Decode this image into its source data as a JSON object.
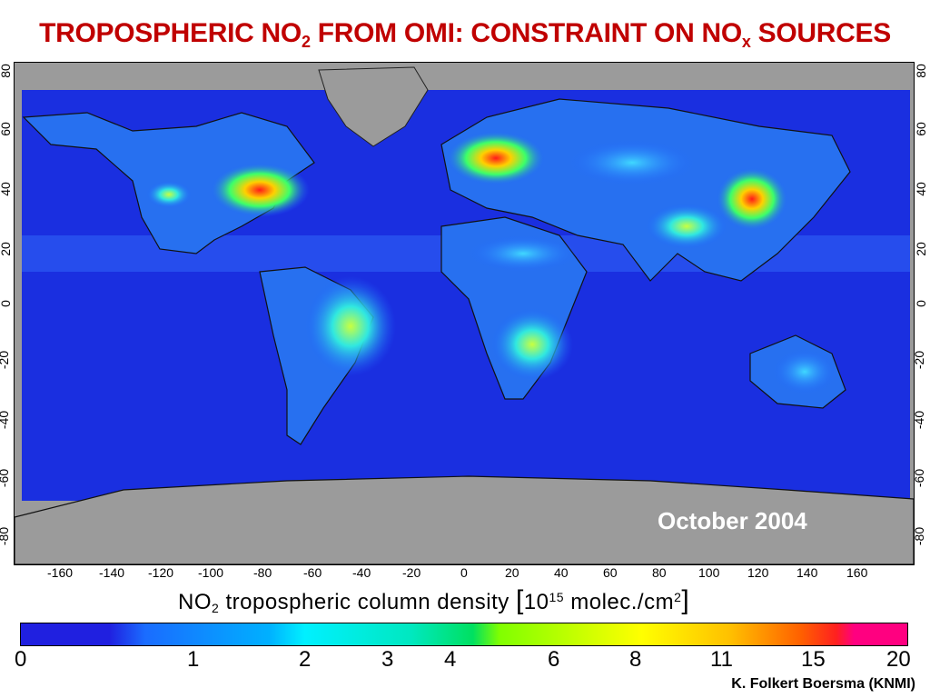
{
  "title": {
    "part1": "TROPOSPHERIC NO",
    "sub1": "2",
    "part2": " FROM OMI: CONSTRAINT ON NO",
    "sub2": "x",
    "part3": " SOURCES"
  },
  "map": {
    "date_label": "October 2004",
    "lon_ticks": [
      "-160",
      "-140",
      "-120",
      "-100",
      "-80",
      "-60",
      "-40",
      "-20",
      "0",
      "20",
      "40",
      "60",
      "80",
      "100",
      "120",
      "140",
      "160"
    ],
    "lat_ticks": [
      "80",
      "60",
      "40",
      "20",
      "0",
      "-20",
      "-40",
      "-60",
      "-80"
    ]
  },
  "colorbar": {
    "title_main": "NO",
    "title_sub": "2",
    "title_rest": " tropospheric column density ",
    "unit_base": "10",
    "unit_exp": "15",
    "unit_mid": " molec./cm",
    "unit_exp2": "2",
    "labels": [
      "0",
      "1",
      "2",
      "3",
      "4",
      "6",
      "8",
      "11",
      "15",
      "20"
    ]
  },
  "credit": "K. Folkert Boersma (KNMI)",
  "colors": {
    "title": "#c00000",
    "ocean_background": "#1a2fe0",
    "land_missing": "#9b9b9b",
    "hotspot": "#ff2020"
  }
}
